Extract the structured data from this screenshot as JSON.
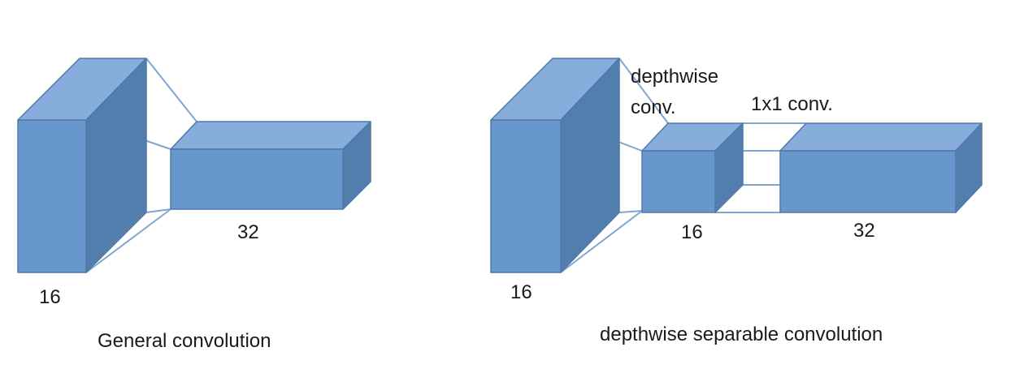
{
  "colors": {
    "front": "#6897cd",
    "top": "#86addb",
    "side": "#527ead",
    "connector": "#7fa6cf",
    "text": "#1a1a1a"
  },
  "left_panel": {
    "input_depth_label": "16",
    "output_depth_label": "32",
    "caption": "General convolution"
  },
  "right_panel": {
    "input_depth_label": "16",
    "depthwise_label_line1": "depthwise",
    "depthwise_label_line2": "conv.",
    "depthwise_output_label": "16",
    "pointwise_label": "1x1 conv.",
    "pointwise_output_label": "32",
    "caption": "depthwise separable convolution"
  }
}
